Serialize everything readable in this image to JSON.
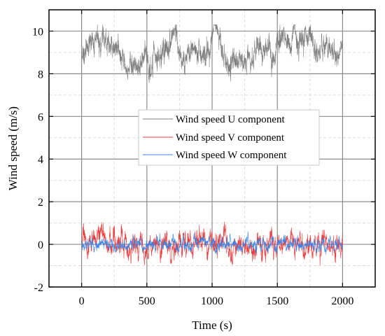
{
  "chart_data": {
    "type": "line",
    "xlabel": "Time (s)",
    "ylabel": "Wind speed (m/s)",
    "xlim": [
      -250,
      2250
    ],
    "ylim": [
      -2,
      11
    ],
    "x_ticks": [
      0,
      500,
      1000,
      1500,
      2000
    ],
    "y_ticks": [
      -2,
      0,
      2,
      4,
      6,
      8,
      10
    ],
    "grid": "major solid, minor dashed",
    "legend_position": "center-right",
    "x_range": [
      0,
      2000
    ],
    "sample_interval": 1,
    "series": [
      {
        "name": "Wind speed U component",
        "color": "#808080",
        "mean": 9.1,
        "std_dev": 0.55,
        "min": 7.1,
        "max": 10.3
      },
      {
        "name": "Wind speed V component",
        "color": "#ee3b3b",
        "mean": 0.0,
        "std_dev": 0.35,
        "min": -1.3,
        "max": 1.2
      },
      {
        "name": "Wind speed W component",
        "color": "#3c84e6",
        "mean": 0.0,
        "std_dev": 0.17,
        "min": -0.8,
        "max": 0.6
      }
    ]
  }
}
